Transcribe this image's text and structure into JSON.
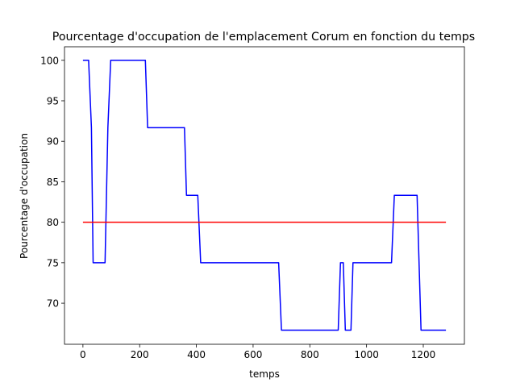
{
  "chart_data": {
    "type": "line",
    "title": "Pourcentage d'occupation de l'emplacement Corum en fonction du temps",
    "xlabel": "temps",
    "ylabel": "Pourcentage d'occupation",
    "xlim": [
      -65,
      1345
    ],
    "ylim": [
      64.93,
      101.67
    ],
    "xticks": [
      0,
      200,
      400,
      600,
      800,
      1000,
      1200
    ],
    "yticks": [
      70,
      75,
      80,
      85,
      90,
      95,
      100
    ],
    "grid": false,
    "series": [
      {
        "color": "#0000ff",
        "points": [
          [
            0,
            100
          ],
          [
            20,
            100
          ],
          [
            30,
            91.67
          ],
          [
            36,
            75
          ],
          [
            78,
            75
          ],
          [
            88,
            91.67
          ],
          [
            98,
            100
          ],
          [
            220,
            100
          ],
          [
            228,
            91.67
          ],
          [
            358,
            91.67
          ],
          [
            365,
            83.33
          ],
          [
            405,
            83.33
          ],
          [
            415,
            75
          ],
          [
            690,
            75
          ],
          [
            700,
            66.67
          ],
          [
            900,
            66.67
          ],
          [
            908,
            75
          ],
          [
            918,
            75
          ],
          [
            925,
            66.67
          ],
          [
            945,
            66.67
          ],
          [
            952,
            75
          ],
          [
            1088,
            75
          ],
          [
            1098,
            83.33
          ],
          [
            1178,
            83.33
          ],
          [
            1192,
            66.67
          ],
          [
            1280,
            66.67
          ]
        ]
      },
      {
        "color": "#ff0000",
        "points": [
          [
            0,
            80
          ],
          [
            1280,
            80
          ]
        ]
      }
    ]
  }
}
